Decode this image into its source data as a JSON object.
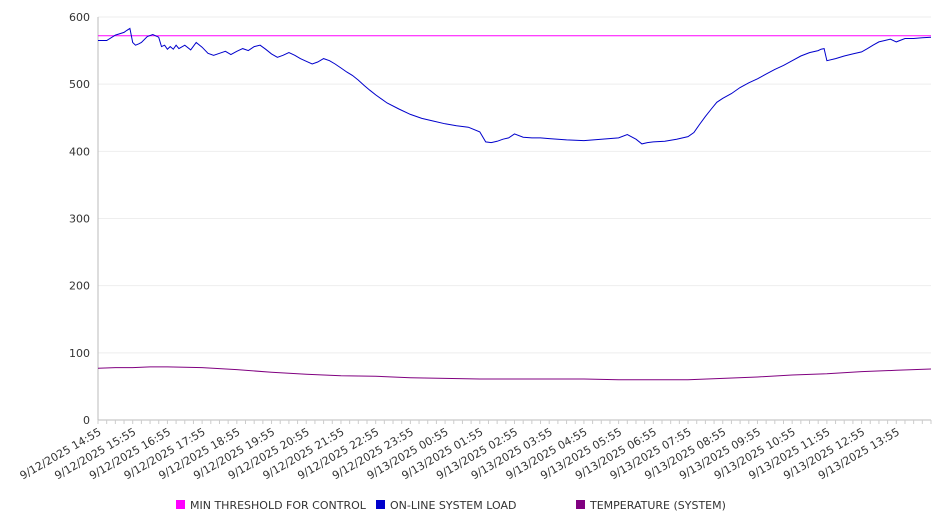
{
  "chart_data": {
    "type": "line",
    "title": "",
    "xlabel": "",
    "ylabel": "",
    "ylim": [
      0,
      600
    ],
    "yticks": [
      0,
      100,
      200,
      300,
      400,
      500,
      600
    ],
    "grid": true,
    "legend_position": "bottom",
    "x_tick_labels": [
      "9/12/2025 14:55",
      "9/12/2025 15:55",
      "9/12/2025 16:55",
      "9/12/2025 17:55",
      "9/12/2025 18:55",
      "9/12/2025 19:55",
      "9/12/2025 20:55",
      "9/12/2025 21:55",
      "9/12/2025 22:55",
      "9/12/2025 23:55",
      "9/13/2025 00:55",
      "9/13/2025 01:55",
      "9/13/2025 02:55",
      "9/13/2025 03:55",
      "9/13/2025 04:55",
      "9/13/2025 05:55",
      "9/13/2025 06:55",
      "9/13/2025 07:55",
      "9/13/2025 08:55",
      "9/13/2025 09:55",
      "9/13/2025 10:55",
      "9/13/2025 11:55",
      "9/13/2025 12:55",
      "9/13/2025 13:55"
    ],
    "x_start": "9/12/2025 14:55",
    "x_end": "9/13/2025 14:55",
    "series": [
      {
        "name": "MIN THRESHOLD FOR CONTROL",
        "color": "#ff00ff",
        "hours": [
          0,
          24
        ],
        "values": [
          572,
          572
        ]
      },
      {
        "name": "ON-LINE SYSTEM LOAD",
        "color": "#0000cc",
        "hours": [
          0,
          0.25,
          0.5,
          0.75,
          0.83,
          0.92,
          1.0,
          1.08,
          1.17,
          1.25,
          1.42,
          1.58,
          1.75,
          1.83,
          1.92,
          2.0,
          2.08,
          2.17,
          2.25,
          2.33,
          2.5,
          2.67,
          2.83,
          3.0,
          3.17,
          3.33,
          3.5,
          3.67,
          3.83,
          4.0,
          4.17,
          4.33,
          4.5,
          4.67,
          4.83,
          5.0,
          5.17,
          5.33,
          5.5,
          5.67,
          5.83,
          6.0,
          6.17,
          6.33,
          6.5,
          6.67,
          6.83,
          7.0,
          7.17,
          7.33,
          7.5,
          7.67,
          7.83,
          8.0,
          8.33,
          8.67,
          9.0,
          9.33,
          9.67,
          10.0,
          10.33,
          10.67,
          11.0,
          11.17,
          11.33,
          11.5,
          11.67,
          11.83,
          12.0,
          12.25,
          12.5,
          12.75,
          13.0,
          13.5,
          14.0,
          14.5,
          15.0,
          15.25,
          15.5,
          15.67,
          15.83,
          16.0,
          16.33,
          16.67,
          17.0,
          17.17,
          17.33,
          17.5,
          17.67,
          17.83,
          18.0,
          18.25,
          18.5,
          18.75,
          19.0,
          19.25,
          19.5,
          19.75,
          20.0,
          20.25,
          20.5,
          20.75,
          20.83,
          20.92,
          21.0,
          21.25,
          21.5,
          21.75,
          22.0,
          22.17,
          22.33,
          22.5,
          22.67,
          22.83,
          23.0,
          23.25,
          23.5,
          23.75,
          24.0
        ],
        "values": [
          565,
          565,
          573,
          577,
          580,
          583,
          562,
          558,
          560,
          562,
          571,
          574,
          570,
          556,
          558,
          552,
          556,
          552,
          558,
          553,
          558,
          551,
          562,
          555,
          546,
          543,
          546,
          549,
          544,
          549,
          553,
          550,
          556,
          558,
          552,
          545,
          540,
          543,
          547,
          543,
          538,
          534,
          530,
          533,
          538,
          535,
          530,
          524,
          518,
          513,
          506,
          498,
          491,
          484,
          472,
          463,
          455,
          449,
          445,
          441,
          438,
          436,
          429,
          414,
          413,
          415,
          418,
          420,
          426,
          421,
          420,
          420,
          419,
          417,
          416,
          418,
          420,
          425,
          418,
          411,
          413,
          414,
          415,
          418,
          422,
          428,
          440,
          452,
          463,
          473,
          479,
          486,
          495,
          502,
          508,
          515,
          522,
          528,
          535,
          542,
          547,
          550,
          552,
          553,
          535,
          538,
          542,
          545,
          548,
          553,
          558,
          563,
          565,
          567,
          563,
          568,
          568,
          569,
          570
        ]
      },
      {
        "name": "TEMPERATURE (SYSTEM)",
        "color": "#800080",
        "hours": [
          0,
          0.5,
          1,
          1.5,
          2,
          3,
          4,
          5,
          6,
          7,
          8,
          9,
          10,
          11,
          12,
          13,
          14,
          15,
          16,
          17,
          18,
          19,
          20,
          21,
          22,
          23,
          24
        ],
        "values": [
          77,
          78,
          78,
          79,
          79,
          78,
          75,
          71,
          68,
          66,
          65,
          63,
          62,
          61,
          61,
          61,
          61,
          60,
          60,
          60,
          62,
          64,
          67,
          69,
          72,
          74,
          76
        ]
      }
    ]
  }
}
